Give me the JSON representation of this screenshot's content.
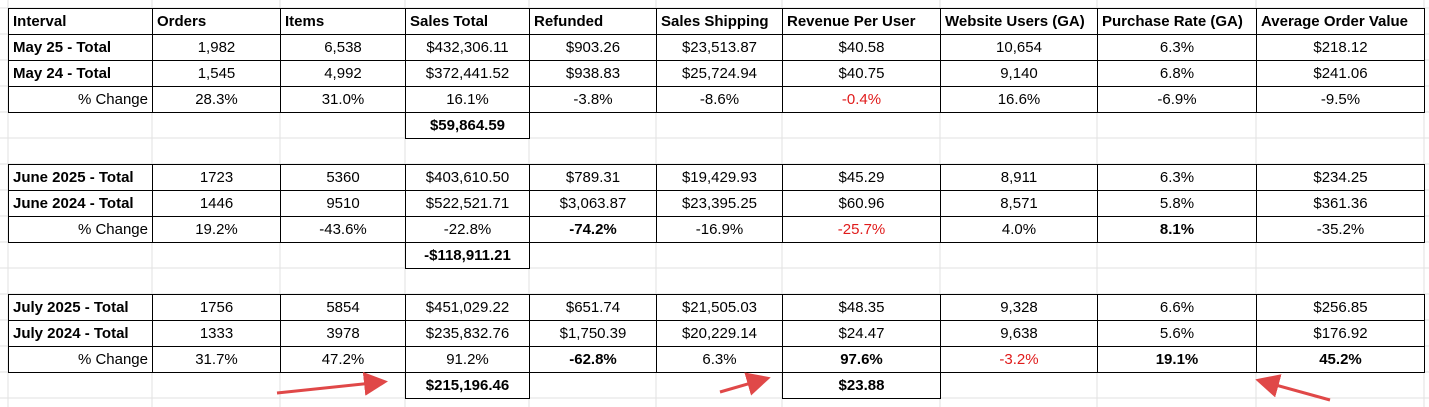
{
  "header": [
    "Interval",
    "Orders",
    "Items",
    "Sales Total",
    "Refunded",
    "Sales Shipping",
    "Revenue Per User",
    "Website Users (GA)",
    "Purchase Rate (GA)",
    "Average Order Value"
  ],
  "sections": [
    {
      "rows": [
        [
          "May 25 - Total",
          "1,982",
          "6,538",
          "$432,306.11",
          "$903.26",
          "$23,513.87",
          "$40.58",
          "10,654",
          "6.3%",
          "$218.12"
        ],
        [
          "May 24 - Total",
          "1,545",
          "4,992",
          "$372,441.52",
          "$938.83",
          "$25,724.94",
          "$40.75",
          "9,140",
          "6.8%",
          "$241.06"
        ],
        [
          "% Change",
          "28.3%",
          "31.0%",
          "16.1%",
          "-3.8%",
          "-8.6%",
          "-0.4%",
          "16.6%",
          "-6.9%",
          "-9.5%"
        ]
      ],
      "sales_total_difference": "$59,864.59"
    },
    {
      "rows": [
        [
          "June 2025 - Total",
          "1723",
          "5360",
          "$403,610.50",
          "$789.31",
          "$19,429.93",
          "$45.29",
          "8,911",
          "6.3%",
          "$234.25"
        ],
        [
          "June 2024 - Total",
          "1446",
          "9510",
          "$522,521.71",
          "$3,063.87",
          "$23,395.25",
          "$60.96",
          "8,571",
          "5.8%",
          "$361.36"
        ],
        [
          "% Change",
          "19.2%",
          "-43.6%",
          "-22.8%",
          "-74.2%",
          "-16.9%",
          "-25.7%",
          "4.0%",
          "8.1%",
          "-35.2%"
        ]
      ],
      "sales_total_difference": "-$118,911.21"
    },
    {
      "rows": [
        [
          "July 2025 - Total",
          "1756",
          "5854",
          "$451,029.22",
          "$651.74",
          "$21,505.03",
          "$48.35",
          "9,328",
          "6.6%",
          "$256.85"
        ],
        [
          "July 2024 - Total",
          "1333",
          "3978",
          "$235,832.76",
          "$1,750.39",
          "$20,229.14",
          "$24.47",
          "9,638",
          "5.6%",
          "$176.92"
        ],
        [
          "% Change",
          "31.7%",
          "47.2%",
          "91.2%",
          "-62.8%",
          "6.3%",
          "97.6%",
          "-3.2%",
          "19.1%",
          "45.2%"
        ]
      ],
      "sales_total_difference": "$215,196.46",
      "revenue_per_user_difference": "$23.88"
    }
  ]
}
